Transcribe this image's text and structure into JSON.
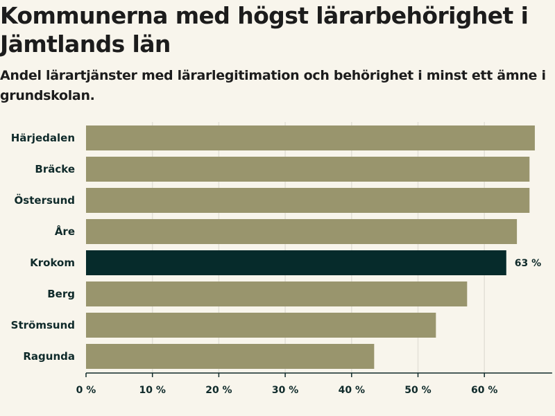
{
  "chart_data": {
    "type": "bar",
    "orientation": "horizontal",
    "title": "Kommunerna med högst lärarbehörighet i Jämtlands län",
    "subtitle": "Andel lärartjänster med lärarlegitimation och behörighet i minst ett ämne i grundskolan.",
    "categories": [
      "Härjedalen",
      "Bräcke",
      "Östersund",
      "Åre",
      "Krokom",
      "Berg",
      "Strömsund",
      "Ragunda"
    ],
    "values": [
      67.6,
      66.8,
      66.8,
      64.9,
      63.3,
      57.4,
      52.7,
      43.4
    ],
    "highlight_index": 4,
    "data_labels": [
      {
        "index": 4,
        "text": "63 %"
      }
    ],
    "xlim": [
      0,
      70
    ],
    "xticks": [
      0,
      10,
      20,
      30,
      40,
      50,
      60
    ],
    "tick_labels": [
      "0 %",
      "10 %",
      "20 %",
      "30 %",
      "40 %",
      "50 %",
      "60 %"
    ],
    "grid": true,
    "colors": {
      "bar": "#99956d",
      "highlight": "#062b2b",
      "grid": "#e3e0d7",
      "axis": "#0f2a2a",
      "background": "#f8f5ec"
    }
  }
}
